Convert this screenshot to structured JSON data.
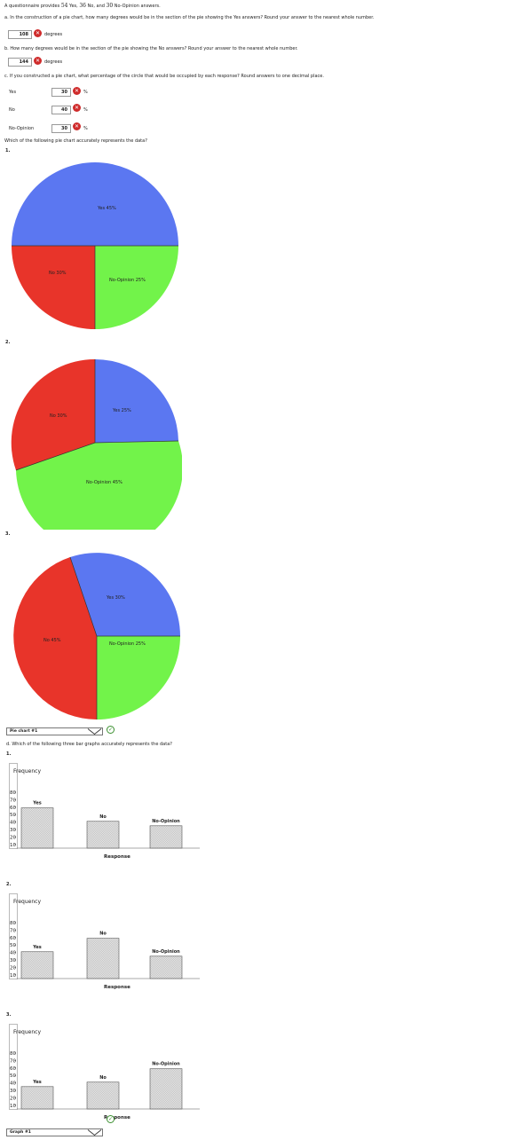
{
  "intro": {
    "text_before_yes": "A questionnaire provides ",
    "yes_count": "54",
    "yes_word": " Yes, ",
    "no_count": "36",
    "no_word": " No, and ",
    "noop_count": "30",
    "noop_word": " No-Opinion answers."
  },
  "part_a": {
    "question": "a. In the construction of a pie chart, how many degrees would be in the section of the pie showing the Yes answers? Round your answer to the nearest whole number.",
    "answer": "108",
    "unit": "degrees"
  },
  "part_b": {
    "question": "b. How many degrees would be in the section of the pie showing the No answers? Round your answer to the nearest whole number.",
    "answer": "144",
    "unit": "degrees"
  },
  "part_c": {
    "question": "c. If you constructed a pie chart, what percentage of the circle that would be occupied by each response? Round answers to one decimal place.",
    "rows": [
      {
        "label": "Yes",
        "answer": "30",
        "unit": "%"
      },
      {
        "label": "No",
        "answer": "40",
        "unit": "%"
      },
      {
        "label": "No-Opinion",
        "answer": "30",
        "unit": "%"
      }
    ],
    "pie_question": "Which of the following pie chart accurately represents the data?"
  },
  "pies": [
    {
      "number": "1.",
      "labels": [
        "Yes 45%",
        "No 30%",
        "No-Opinion 25%"
      ]
    },
    {
      "number": "2.",
      "labels": [
        "Yes 25%",
        "No 30%",
        "No-Opinion 45%"
      ]
    },
    {
      "number": "3.",
      "labels": [
        "Yes 30%",
        "No 45%",
        "No-Opinion 25%"
      ]
    }
  ],
  "pie_select": {
    "value": "Pie chart #1"
  },
  "part_d": {
    "question": "d. Which of the following three bar graphs accurately represents the data?"
  },
  "bars": [
    {
      "number": "1.",
      "ylabel": "Frequency",
      "xlabel": "Response",
      "ticks": [
        "80",
        "70",
        "60",
        "50",
        "40",
        "30",
        "20",
        "10"
      ],
      "categories": [
        "Yes",
        "No",
        "No-Opinion"
      ]
    },
    {
      "number": "2.",
      "ylabel": "Frequency",
      "xlabel": "Response",
      "ticks": [
        "80",
        "70",
        "60",
        "50",
        "40",
        "30",
        "20",
        "10"
      ],
      "categories": [
        "Yes",
        "No",
        "No-Opinion"
      ]
    },
    {
      "number": "3.",
      "ylabel": "Frequency",
      "xlabel": "Response",
      "ticks": [
        "80",
        "70",
        "60",
        "50",
        "40",
        "30",
        "20",
        "10"
      ],
      "categories": [
        "Yes",
        "No",
        "No-Opinion"
      ]
    }
  ],
  "bar_select": {
    "value": "Graph #1"
  },
  "colors": {
    "blue": "#5b77f1",
    "red": "#e8342a",
    "green": "#72f34a",
    "wrong": "#cf2b2b",
    "correct": "#3a8f2e"
  },
  "chart_data": [
    {
      "type": "pie",
      "categories": [
        "Yes",
        "No",
        "No-Opinion"
      ],
      "values": [
        45,
        30,
        25
      ]
    },
    {
      "type": "pie",
      "categories": [
        "Yes",
        "No",
        "No-Opinion"
      ],
      "values": [
        25,
        30,
        45
      ]
    },
    {
      "type": "pie",
      "categories": [
        "Yes",
        "No",
        "No-Opinion"
      ],
      "values": [
        30,
        45,
        25
      ]
    },
    {
      "type": "bar",
      "categories": [
        "Yes",
        "No",
        "No-Opinion"
      ],
      "values": [
        54,
        36,
        30
      ],
      "xlabel": "Response",
      "ylabel": "Frequency",
      "ylim": [
        0,
        80
      ]
    },
    {
      "type": "bar",
      "categories": [
        "Yes",
        "No",
        "No-Opinion"
      ],
      "values": [
        36,
        54,
        30
      ],
      "xlabel": "Response",
      "ylabel": "Frequency",
      "ylim": [
        0,
        80
      ]
    },
    {
      "type": "bar",
      "categories": [
        "Yes",
        "No",
        "No-Opinion"
      ],
      "values": [
        30,
        36,
        54
      ],
      "xlabel": "Response",
      "ylabel": "Frequency",
      "ylim": [
        0,
        80
      ]
    }
  ]
}
